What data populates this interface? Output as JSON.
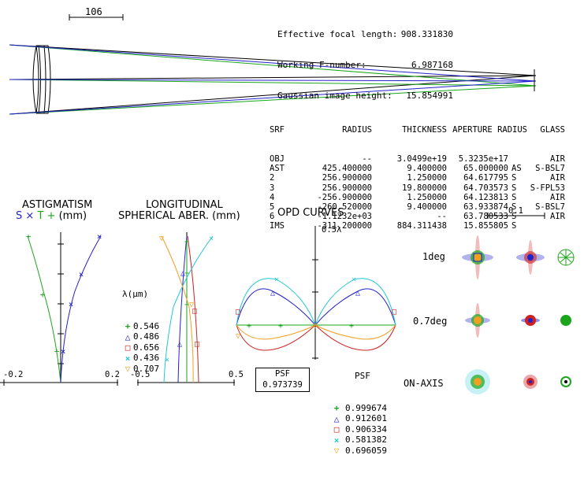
{
  "scale_bar_label": "106",
  "specs": [
    {
      "label": "Effective focal length:",
      "value": "908.331830"
    },
    {
      "label": "Working F-number:",
      "value": "6.987168"
    },
    {
      "label": "Gaussian image height:",
      "value": "15.854991"
    }
  ],
  "prescription": {
    "headers": [
      "SRF",
      "RADIUS",
      "THICKNESS",
      "APERTURE RADIUS",
      "GLASS"
    ],
    "rows": [
      {
        "srf": "OBJ",
        "radius": "--",
        "thickness": "3.0499e+19",
        "aperture": "5.3235e+17",
        "flag": "",
        "glass": "AIR"
      },
      {
        "srf": "AST",
        "radius": "425.400000",
        "thickness": "9.400000",
        "aperture": "65.000000",
        "flag": "AS",
        "glass": "S-BSL7"
      },
      {
        "srf": "2",
        "radius": "256.900000",
        "thickness": "1.250000",
        "aperture": "64.617795",
        "flag": "S",
        "glass": "AIR"
      },
      {
        "srf": "3",
        "radius": "256.900000",
        "thickness": "19.800000",
        "aperture": "64.703573",
        "flag": "S",
        "glass": "S-FPL53"
      },
      {
        "srf": "4",
        "radius": "-256.900000",
        "thickness": "1.250000",
        "aperture": "64.123813",
        "flag": "S",
        "glass": "AIR"
      },
      {
        "srf": "5",
        "radius": "-260.520000",
        "thickness": "9.400000",
        "aperture": "63.933874",
        "flag": "S",
        "glass": "S-BSL7"
      },
      {
        "srf": "6",
        "radius": "-1.1232e+03",
        "thickness": "--",
        "aperture": "63.780533",
        "flag": "S",
        "glass": "AIR"
      },
      {
        "srf": "IMS",
        "radius": "-311.200000",
        "thickness": "884.311438",
        "aperture": "15.855805",
        "flag": "S",
        "glass": ""
      }
    ]
  },
  "astigmatism": {
    "title": "ASTIGMATISM",
    "sub_s": "S",
    "sub_x": "×",
    "sub_t": "T",
    "sub_plus": "+",
    "sub_units": "(mm)",
    "x_min_label": "-0.2",
    "x_max_label": "0.2"
  },
  "spherical": {
    "title": "LONGITUDINAL",
    "subtitle": "SPHERICAL ABER.",
    "units": "(mm)",
    "x_min_label": "-0.5",
    "x_max_label": "0.5",
    "lambda_label": "λ(μm)",
    "wavelengths": [
      {
        "value": "0.546",
        "color": "#1aa51a",
        "symbol": "+"
      },
      {
        "value": "0.486",
        "color": "#2222cc",
        "symbol": "△"
      },
      {
        "value": "0.656",
        "color": "#cc2222",
        "symbol": "□"
      },
      {
        "value": "0.436",
        "color": "#22c8d8",
        "symbol": "×"
      },
      {
        "value": "0.707",
        "color": "#f0a020",
        "symbol": "▽"
      }
    ]
  },
  "opd": {
    "title": "OPD CURVES",
    "y_label": "0.5λ",
    "psf_label": "PSF",
    "psf_values": [
      {
        "value": "0.999674",
        "color": "#1aa51a",
        "symbol": "+"
      },
      {
        "value": "0.912601",
        "color": "#2222cc",
        "symbol": "△"
      },
      {
        "value": "0.906334",
        "color": "#cc2222",
        "symbol": "□"
      },
      {
        "value": "0.581382",
        "color": "#22c8d8",
        "symbol": "×"
      },
      {
        "value": "0.696059",
        "color": "#f0a020",
        "symbol": "▽"
      }
    ],
    "box_label": "PSF",
    "box_value": "0.973739"
  },
  "spot": {
    "scale_label": "0.1",
    "fields": [
      "1deg",
      "0.7deg",
      "ON-AXIS"
    ]
  },
  "colors": {
    "green": "#1aa51a",
    "blue": "#2222cc",
    "red": "#cc2222",
    "cyan": "#22c8d8",
    "orange": "#f0a020"
  }
}
